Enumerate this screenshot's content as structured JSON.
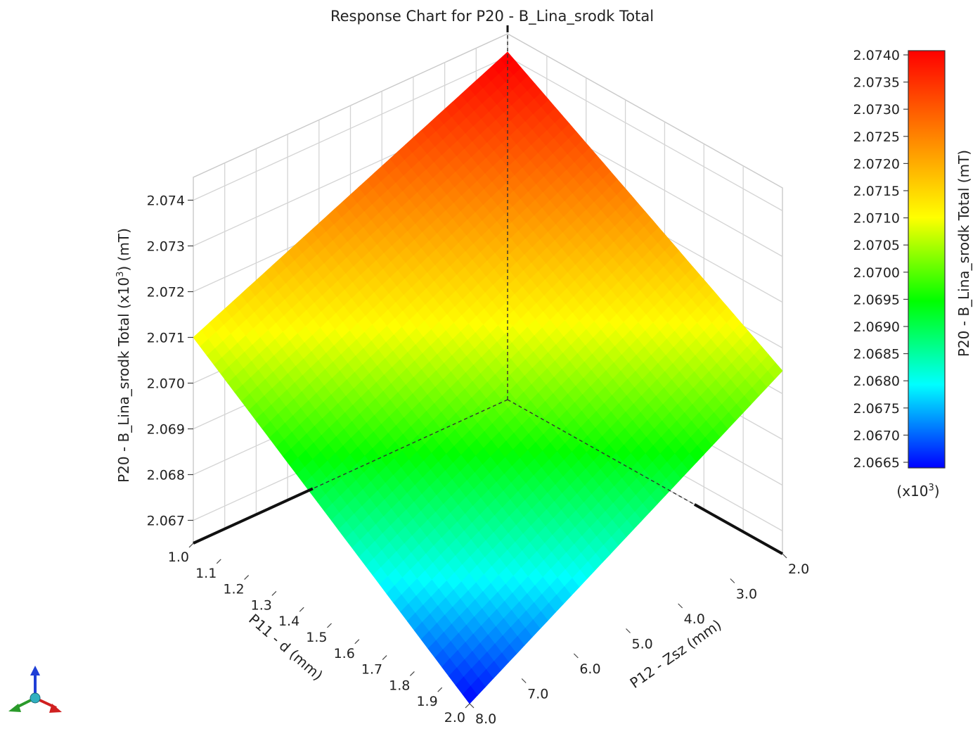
{
  "chart_data": {
    "type": "surface",
    "title": "Response Chart for P20 - B_Lina_srodk Total",
    "x_axis": {
      "label": "P11 - d (mm)",
      "ticks": [
        "1.0",
        "1.1",
        "1.2",
        "1.3",
        "1.4",
        "1.5",
        "1.6",
        "1.7",
        "1.8",
        "1.9",
        "2.0"
      ],
      "range": [
        1.0,
        2.0
      ]
    },
    "y_axis": {
      "label": "P12 - Zsz (mm)",
      "ticks": [
        "2.0",
        "3.0",
        "4.0",
        "5.0",
        "6.0",
        "7.0",
        "8.0"
      ],
      "range": [
        2.0,
        8.0
      ]
    },
    "z_axis": {
      "label_prefix": "P20 - B_Lina_srodk Total (x10",
      "label_exp": "3",
      "label_suffix": ") (mT)",
      "ticks": [
        "2.067",
        "2.068",
        "2.069",
        "2.070",
        "2.071",
        "2.072",
        "2.073",
        "2.074"
      ]
    },
    "corner_values": [
      {
        "d": 1.0,
        "zsz": 2.0,
        "value": 2.0741
      },
      {
        "d": 1.0,
        "zsz": 8.0,
        "value": 2.071
      },
      {
        "d": 2.0,
        "zsz": 2.0,
        "value": 2.0705
      },
      {
        "d": 2.0,
        "zsz": 8.0,
        "value": 2.0665
      }
    ],
    "colorbar": {
      "label": "P20 - B_Lina_srodk Total (mT)",
      "ticks": [
        "2.0740",
        "2.0735",
        "2.0730",
        "2.0725",
        "2.0720",
        "2.0715",
        "2.0710",
        "2.0705",
        "2.0700",
        "2.0695",
        "2.0690",
        "2.0685",
        "2.0680",
        "2.0675",
        "2.0670",
        "2.0665"
      ],
      "multiplier_prefix": "(x10",
      "multiplier_exp": "3",
      "multiplier_suffix": ")",
      "range": [
        2.0665,
        2.074
      ],
      "colors": [
        "#0000ff",
        "#00ffff",
        "#00ff00",
        "#ffff00",
        "#ff8000",
        "#ff0000"
      ]
    },
    "grid": true
  },
  "triad": {
    "colors": {
      "z": "#1f3fd6",
      "x": "#d02020",
      "y": "#2a9a2a",
      "origin": "#30b0c0"
    }
  }
}
